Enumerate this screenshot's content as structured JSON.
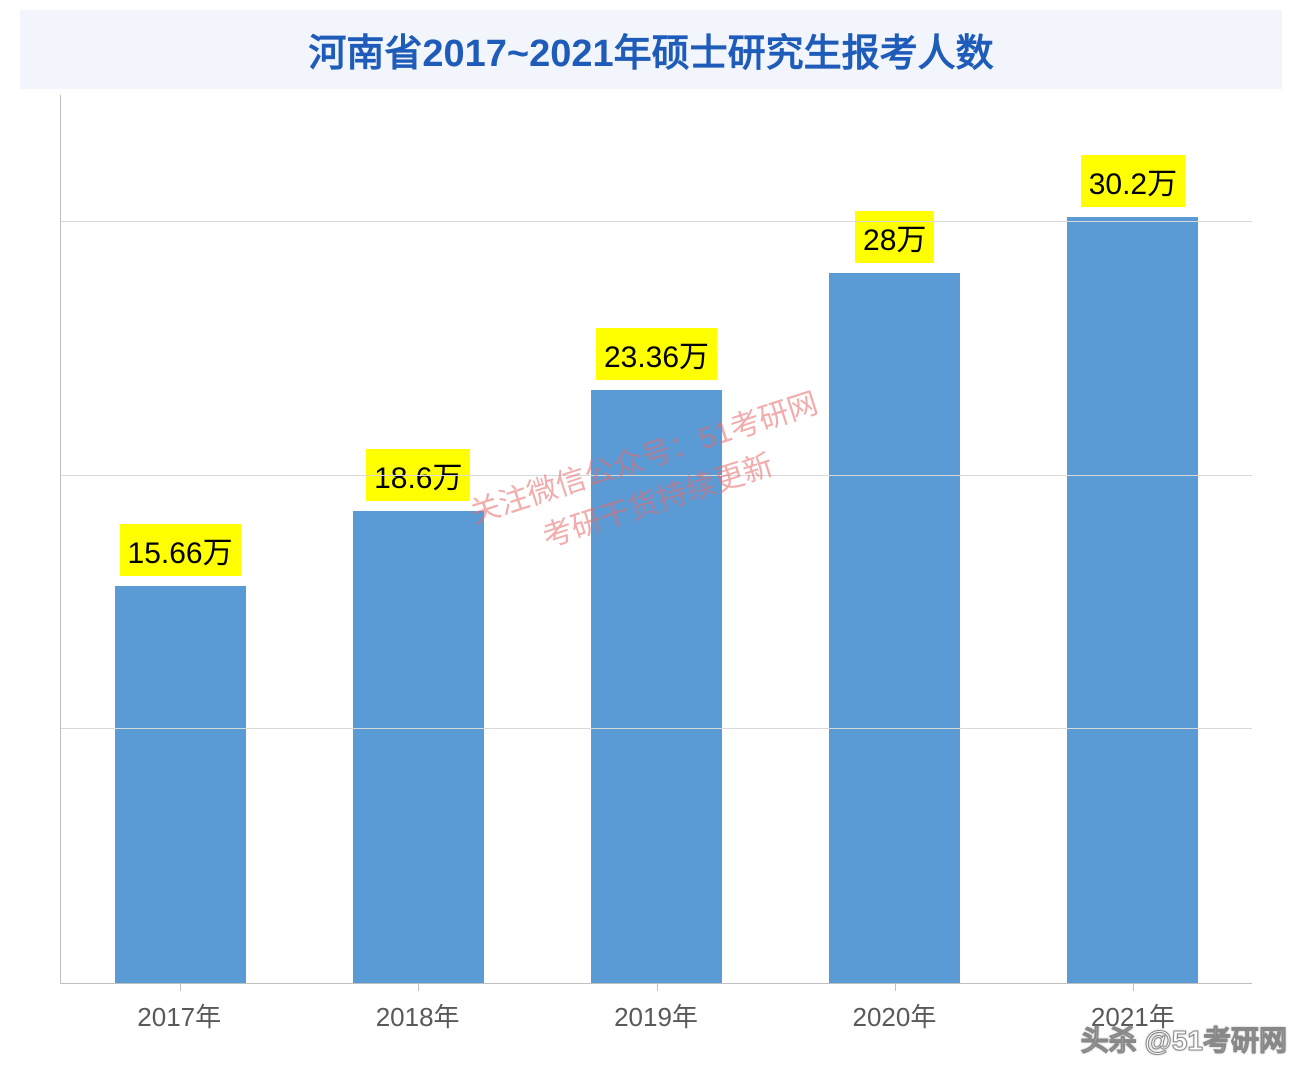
{
  "chart": {
    "type": "bar",
    "title": "河南省2017~2021年硕士研究生报考人数",
    "title_color": "#1f5bb8",
    "title_fontsize": 38,
    "title_bg_color": "#f2f6fc",
    "categories": [
      "2017年",
      "2018年",
      "2019年",
      "2020年",
      "2021年"
    ],
    "values": [
      15.66,
      18.6,
      23.36,
      28,
      30.2
    ],
    "value_labels": [
      "15.66万",
      "18.6万",
      "23.36万",
      "28万",
      "30.2万"
    ],
    "bar_color": "#5b9bd5",
    "label_bg_color": "#ffff00",
    "label_text_color": "#000000",
    "label_fontsize": 30,
    "axis_label_color": "#595959",
    "axis_label_fontsize": 26,
    "grid_color": "#d9d9d9",
    "ymax": 35,
    "gridlines_at": [
      10,
      20,
      30
    ],
    "background_color": "#ffffff",
    "bar_width_ratio": 0.55
  },
  "watermark": {
    "center_line1": "关注微信公众号：51考研网",
    "center_line2": "考研干货持续更新",
    "center_color": "#e86a6a",
    "center_fontsize": 30,
    "corner": "头杀 @51考研网",
    "corner_color": "#ffffff",
    "corner_stroke": "#888888",
    "corner_fontsize": 28
  }
}
